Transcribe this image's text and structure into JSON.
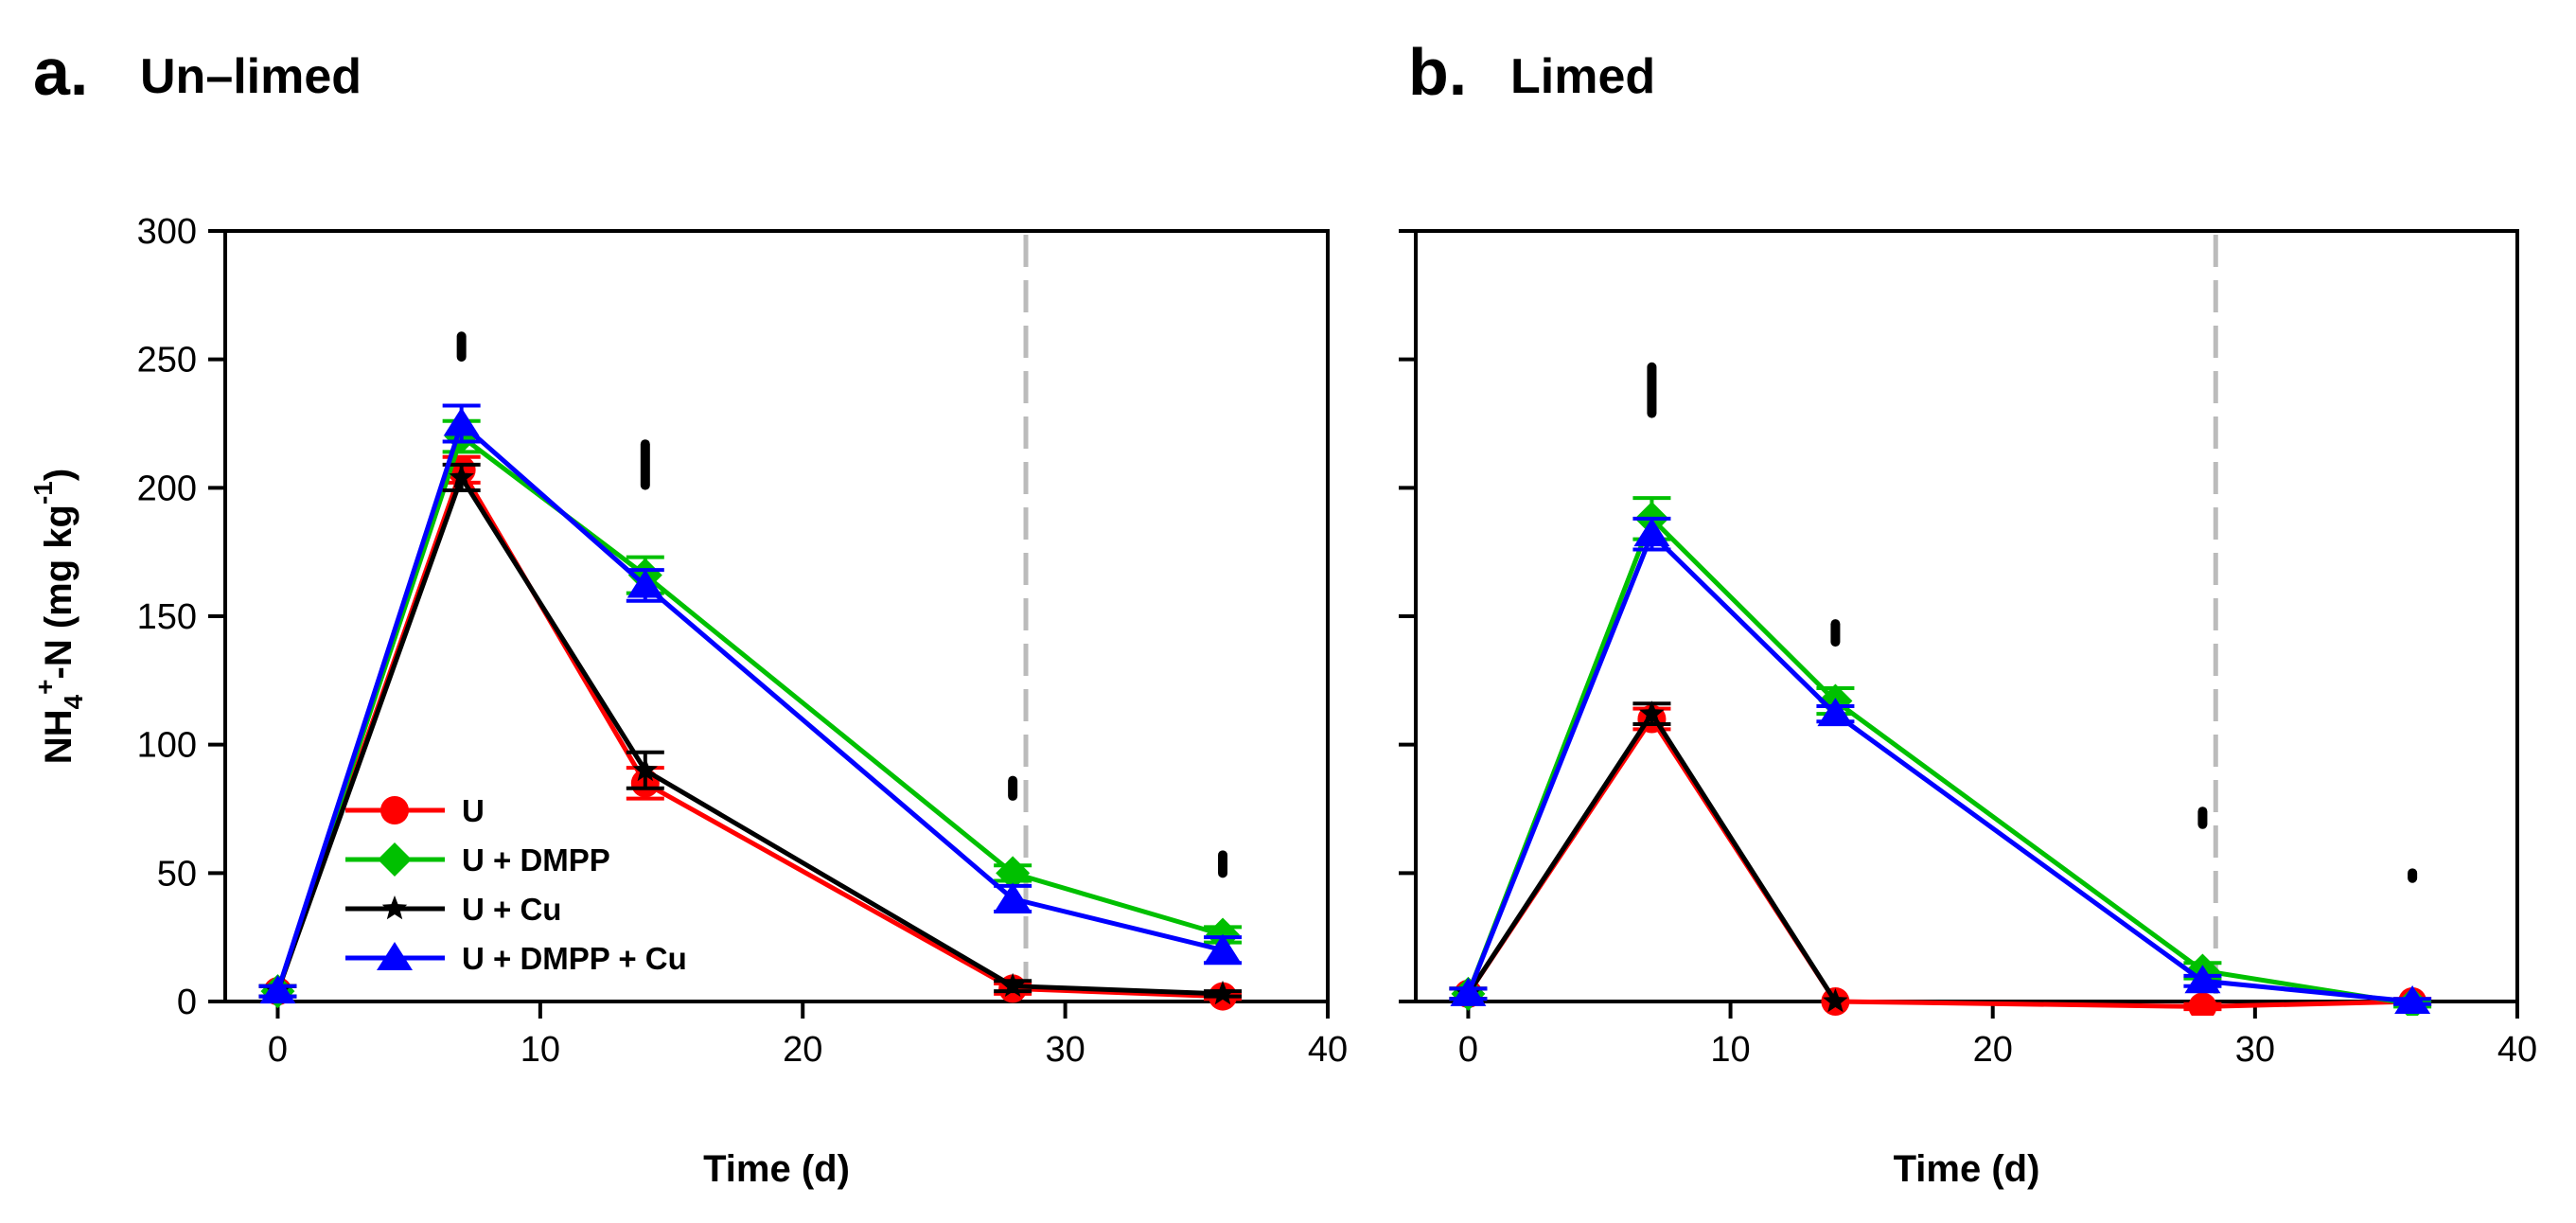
{
  "chart_data": [
    {
      "type": "line",
      "panel_letter": "a.",
      "title": "Un–limed",
      "xlabel": "Time (d)",
      "ylabel": {
        "prefix": "NH",
        "sub": "4",
        "sup": "+",
        "middle": "-N (mg kg",
        "sup2": "-1",
        "suffix": ")"
      },
      "xlim": [
        -2,
        40
      ],
      "ylim": [
        0,
        300
      ],
      "xticks": [
        "0",
        "10",
        "20",
        "30",
        "40"
      ],
      "yticks": [
        "0",
        "50",
        "100",
        "150",
        "200",
        "250",
        "300"
      ],
      "reference_line_x": 28.5,
      "legend": {
        "placement": "lower-left",
        "entries": [
          "U",
          "U + DMPP",
          "U + Cu",
          "U + DMPP + Cu"
        ]
      },
      "series": [
        {
          "name": "U",
          "color": "#ff0000",
          "marker": "circle",
          "x": [
            0,
            7,
            14,
            28,
            36
          ],
          "y": [
            4,
            207,
            85,
            5,
            2
          ],
          "err": [
            2,
            5,
            6,
            2,
            1
          ]
        },
        {
          "name": "U + DMPP",
          "color": "#00c000",
          "marker": "diamond",
          "x": [
            0,
            7,
            14,
            28,
            36
          ],
          "y": [
            4,
            220,
            166,
            50,
            26
          ],
          "err": [
            2,
            6,
            7,
            3,
            3
          ]
        },
        {
          "name": "U + Cu",
          "color": "#000000",
          "marker": "star",
          "x": [
            0,
            7,
            14,
            28,
            36
          ],
          "y": [
            4,
            204,
            90,
            6,
            3
          ],
          "err": [
            2,
            5,
            7,
            2,
            1
          ]
        },
        {
          "name": "U + DMPP + Cu",
          "color": "#0000ff",
          "marker": "triangle",
          "x": [
            0,
            7,
            14,
            28,
            36
          ],
          "y": [
            4,
            225,
            162,
            40,
            20
          ],
          "err": [
            2,
            7,
            6,
            5,
            5
          ]
        }
      ],
      "lsd_bars": [
        {
          "x": 7,
          "y_low": 251,
          "y_high": 259
        },
        {
          "x": 14,
          "y_low": 201,
          "y_high": 217
        },
        {
          "x": 28,
          "y_low": 80,
          "y_high": 86
        },
        {
          "x": 36,
          "y_low": 50,
          "y_high": 57
        }
      ]
    },
    {
      "type": "line",
      "panel_letter": "b.",
      "title": "Limed",
      "xlabel": "Time (d)",
      "xlim": [
        -2,
        40
      ],
      "ylim": [
        0,
        300
      ],
      "xticks": [
        "0",
        "10",
        "20",
        "30",
        "40"
      ],
      "reference_line_x": 28.5,
      "series": [
        {
          "name": "U",
          "color": "#ff0000",
          "marker": "circle",
          "x": [
            0,
            7,
            14,
            28,
            36
          ],
          "y": [
            3,
            110,
            0,
            -2,
            0
          ],
          "err": [
            2,
            4,
            0,
            1,
            1
          ]
        },
        {
          "name": "U + DMPP",
          "color": "#00c000",
          "marker": "diamond",
          "x": [
            0,
            7,
            14,
            28,
            36
          ],
          "y": [
            3,
            188,
            117,
            12,
            -1
          ],
          "err": [
            2,
            8,
            5,
            3,
            1
          ]
        },
        {
          "name": "U + Cu",
          "color": "#000000",
          "marker": "star",
          "x": [
            0,
            7,
            14,
            28,
            36
          ],
          "y": [
            3,
            112,
            0,
            null,
            null
          ],
          "err": [
            2,
            4,
            0,
            0,
            0
          ]
        },
        {
          "name": "U + DMPP + Cu",
          "color": "#0000ff",
          "marker": "triangle",
          "x": [
            0,
            7,
            14,
            28,
            36
          ],
          "y": [
            3,
            182,
            112,
            8,
            0
          ],
          "err": [
            2,
            6,
            3,
            2,
            1
          ]
        }
      ],
      "lsd_bars": [
        {
          "x": 7,
          "y_low": 229,
          "y_high": 247
        },
        {
          "x": 14,
          "y_low": 140,
          "y_high": 147
        },
        {
          "x": 28,
          "y_low": 69,
          "y_high": 74
        },
        {
          "x": 36,
          "y_low": 48,
          "y_high": 50
        }
      ]
    }
  ]
}
